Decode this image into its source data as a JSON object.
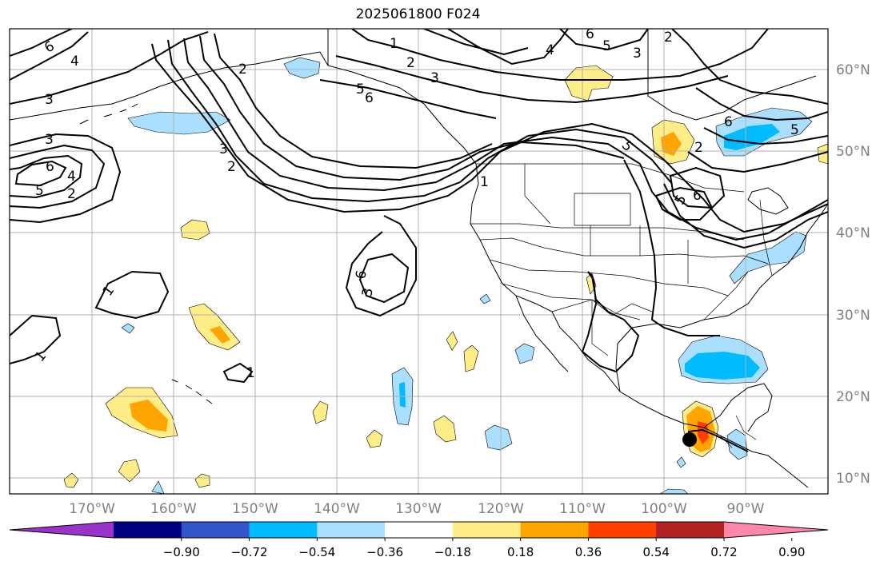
{
  "title": "2025061800 F024",
  "map": {
    "lon_labels": [
      "170°W",
      "160°W",
      "150°W",
      "140°W",
      "130°W",
      "120°W",
      "110°W",
      "100°W",
      "90°W"
    ],
    "lat_labels": [
      "10°N",
      "20°N",
      "30°N",
      "40°N",
      "50°N",
      "60°N"
    ],
    "contour_labels": [
      "6",
      "4",
      "3",
      "3",
      "6",
      "4",
      "5",
      "2",
      "1",
      "2",
      "3",
      "5",
      "6",
      "4",
      "5",
      "6",
      "3",
      "2",
      "2",
      "3",
      "2",
      "1",
      "1",
      "1",
      "1",
      "3",
      "5",
      "5",
      "6",
      "6",
      "5",
      "2",
      "6"
    ]
  },
  "colorbar": {
    "colors": [
      "#9933cc",
      "#000080",
      "#3355cc",
      "#00bbff",
      "#aadfff",
      "#ffffff",
      "#ffee88",
      "#ffa500",
      "#ff4000",
      "#b22222",
      "#ff88aa"
    ],
    "tick_labels": [
      "−0.90",
      "−0.72",
      "−0.54",
      "−0.36",
      "−0.18",
      "0.18",
      "0.36",
      "0.54",
      "0.72",
      "0.90"
    ]
  }
}
